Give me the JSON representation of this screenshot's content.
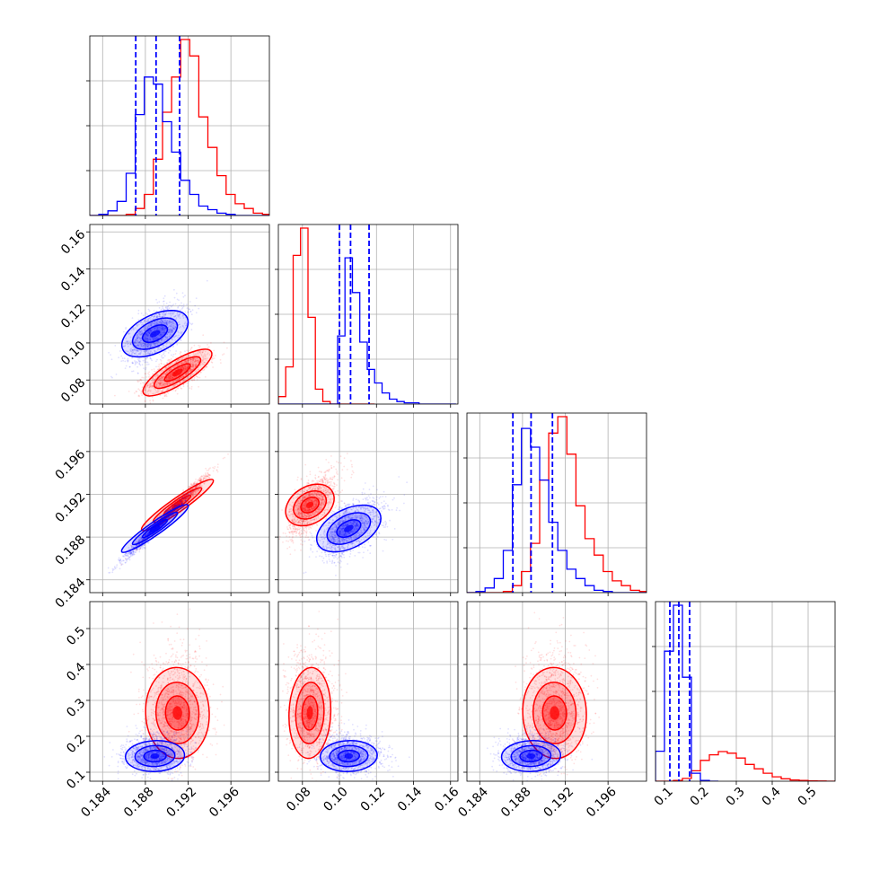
{
  "chart_data": {
    "type": "corner",
    "grid": true,
    "colors": {
      "red_series": "#ff0000",
      "blue_series": "#0000ff"
    },
    "parameters": [
      {
        "range": [
          0.1828,
          0.1996
        ],
        "ticks": [
          0.184,
          0.188,
          0.192,
          0.196
        ],
        "tick_labels": [
          "0.184",
          "0.188",
          "0.192",
          "0.196"
        ]
      },
      {
        "range": [
          0.067,
          0.164
        ],
        "ticks": [
          0.08,
          0.1,
          0.12,
          0.14,
          0.16
        ],
        "tick_labels": [
          "0.08",
          "0.10",
          "0.12",
          "0.14",
          "0.16"
        ]
      },
      {
        "range": [
          0.1828,
          0.1996
        ],
        "ticks": [
          0.184,
          0.188,
          0.192,
          0.196
        ],
        "tick_labels": [
          "0.184",
          "0.188",
          "0.192",
          "0.196"
        ]
      },
      {
        "range": [
          0.075,
          0.575
        ],
        "ticks": [
          0.1,
          0.2,
          0.3,
          0.4,
          0.5
        ],
        "tick_labels": [
          "0.1",
          "0.2",
          "0.3",
          "0.4",
          "0.5"
        ]
      }
    ],
    "quantile_lines_blue": [
      [
        0.1871,
        0.189,
        0.1912
      ],
      [
        0.1,
        0.106,
        0.116
      ],
      [
        0.1871,
        0.1888,
        0.1908
      ],
      [
        0.115,
        0.14,
        0.17
      ]
    ],
    "series": [
      {
        "color": "red",
        "histograms": [
          {
            "bins": [
              0.1828,
              0.18365,
              0.1845,
              0.18535,
              0.1862,
              0.18705,
              0.1879,
              0.18875,
              0.1896,
              0.19045,
              0.1913,
              0.19215,
              0.193,
              0.19385,
              0.1947,
              0.19555,
              0.1964,
              0.19725,
              0.1981,
              0.19895,
              0.1998
            ],
            "counts": [
              0,
              0,
              0,
              0,
              1,
              6,
              18,
              48,
              88,
              118,
              150,
              136,
              84,
              58,
              34,
              18,
              10,
              6,
              2,
              1
            ]
          },
          {
            "bins": [
              0.067,
              0.071,
              0.075,
              0.079,
              0.083,
              0.087,
              0.091,
              0.095,
              0.099,
              0.103,
              0.107,
              0.111,
              0.115,
              0.119
            ],
            "counts": [
              6,
              30,
              120,
              142,
              70,
              12,
              2,
              0,
              0,
              0,
              0,
              0,
              0
            ]
          },
          {
            "bins": [
              0.1828,
              0.18365,
              0.1845,
              0.18535,
              0.1862,
              0.18705,
              0.1879,
              0.18875,
              0.1896,
              0.19045,
              0.1913,
              0.19215,
              0.193,
              0.19385,
              0.1947,
              0.19555,
              0.1964,
              0.19725,
              0.1981,
              0.19895,
              0.1998
            ],
            "counts": [
              0,
              0,
              0,
              0,
              1,
              6,
              18,
              42,
              96,
              136,
              150,
              118,
              74,
              46,
              32,
              18,
              10,
              6,
              2,
              1
            ]
          },
          {
            "bins": [
              0.075,
              0.1,
              0.125,
              0.15,
              0.175,
              0.2,
              0.225,
              0.25,
              0.275,
              0.3,
              0.325,
              0.35,
              0.375,
              0.4,
              0.425,
              0.45,
              0.475,
              0.5,
              0.525,
              0.55,
              0.575
            ],
            "counts": [
              0,
              0,
              4,
              14,
              52,
              104,
              132,
              148,
              140,
              116,
              84,
              62,
              40,
              22,
              12,
              6,
              4,
              2,
              1,
              0
            ]
          }
        ],
        "centers": [
          0.191,
          0.084,
          0.191,
          0.265
        ],
        "sigmas": [
          0.00145,
          0.0055,
          0.00145,
          0.065
        ],
        "correlations": [
          [
            0,
            1,
            0.65
          ],
          [
            0,
            2,
            0.98
          ],
          [
            1,
            2,
            0.65
          ],
          [
            0,
            3,
            0.05
          ],
          [
            1,
            3,
            -0.05
          ],
          [
            2,
            3,
            0.05
          ]
        ]
      },
      {
        "color": "blue",
        "histograms": [
          {
            "bins": [
              0.1828,
              0.18365,
              0.1845,
              0.18535,
              0.1862,
              0.18705,
              0.1879,
              0.18875,
              0.1896,
              0.19045,
              0.1913,
              0.19215,
              0.193,
              0.19385,
              0.1947,
              0.19555,
              0.1964,
              0.19725,
              0.1981,
              0.19895,
              0.1998
            ],
            "counts": [
              0,
              1,
              4,
              12,
              36,
              86,
              118,
              112,
              80,
              54,
              30,
              18,
              8,
              5,
              2,
              1,
              0,
              0,
              0,
              0
            ]
          },
          {
            "bins": [
              0.067,
              0.071,
              0.075,
              0.079,
              0.083,
              0.087,
              0.091,
              0.095,
              0.099,
              0.103,
              0.107,
              0.111,
              0.115,
              0.119,
              0.123,
              0.127,
              0.131,
              0.135,
              0.139,
              0.143,
              0.147,
              0.151,
              0.155,
              0.159,
              0.163
            ],
            "counts": [
              0,
              0,
              0,
              0,
              0,
              0,
              0,
              0,
              55,
              118,
              90,
              50,
              28,
              17,
              9,
              4,
              2,
              1,
              1,
              0,
              0,
              0,
              0,
              0
            ]
          },
          {
            "bins": [
              0.1828,
              0.18365,
              0.1845,
              0.18535,
              0.1862,
              0.18705,
              0.1879,
              0.18875,
              0.1896,
              0.19045,
              0.1913,
              0.19215,
              0.193,
              0.19385,
              0.1947,
              0.19555,
              0.1964,
              0.19725,
              0.1981,
              0.19895,
              0.1998
            ],
            "counts": [
              0,
              1,
              4,
              12,
              36,
              92,
              140,
              124,
              96,
              60,
              36,
              20,
              12,
              6,
              2,
              1,
              0,
              0,
              0,
              0
            ]
          },
          {
            "bins": [
              0.075,
              0.1,
              0.125,
              0.15,
              0.175,
              0.2,
              0.225,
              0.25
            ],
            "counts": [
              150,
              650,
              880,
              520,
              40,
              4,
              0
            ]
          }
        ],
        "centers": [
          0.1889,
          0.105,
          0.1888,
          0.145
        ],
        "sigmas": [
          0.00135,
          0.0075,
          0.00135,
          0.022
        ],
        "correlations": [
          [
            0,
            1,
            0.55
          ],
          [
            0,
            2,
            0.98
          ],
          [
            1,
            2,
            0.55
          ],
          [
            0,
            3,
            0.05
          ],
          [
            1,
            3,
            0.05
          ],
          [
            2,
            3,
            0.05
          ]
        ]
      }
    ]
  }
}
